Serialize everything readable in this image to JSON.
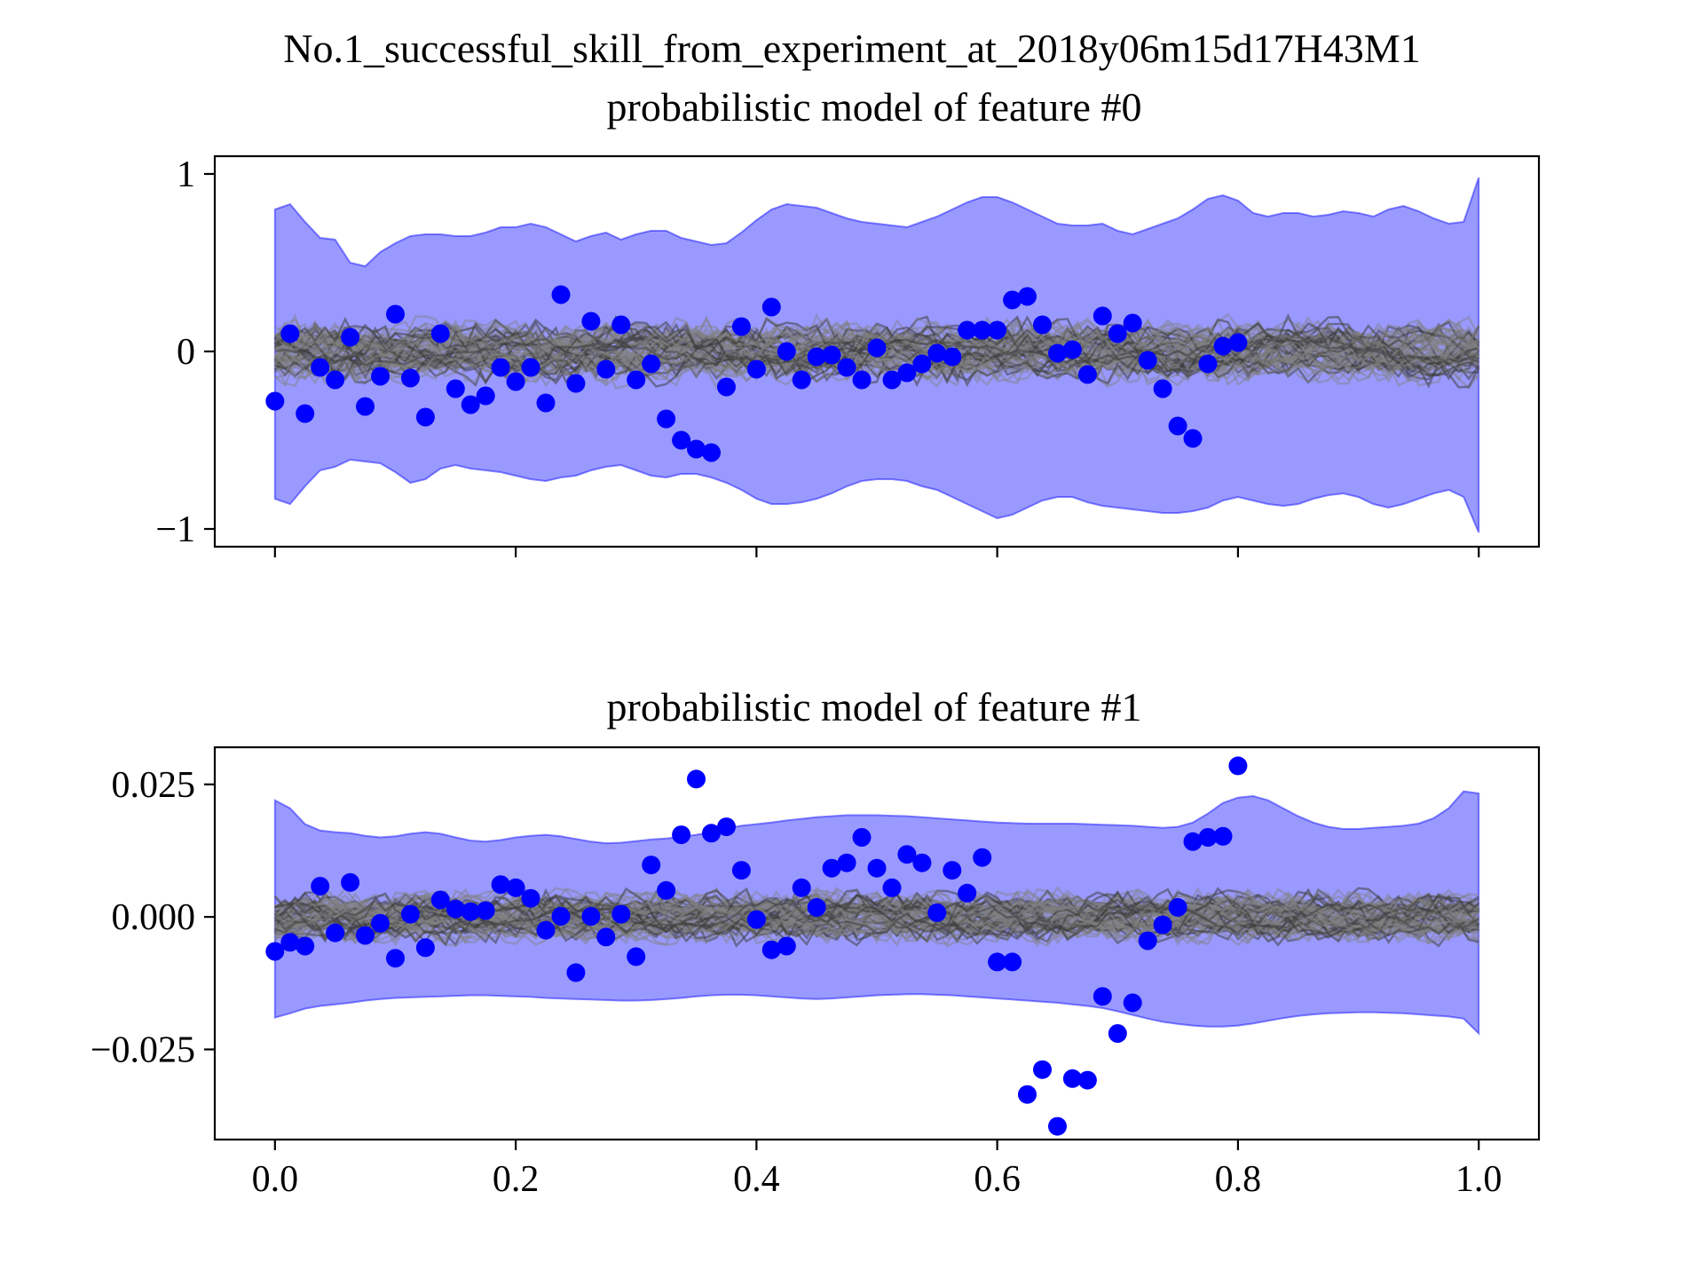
{
  "figure": {
    "suptitle": "No.1_successful_skill_from_experiment_at_2018y06m15d17H43M1"
  },
  "chart_data": [
    {
      "type": "scatter",
      "title": "probabilistic model of feature #0",
      "xlim": [
        -0.05,
        1.05
      ],
      "ylim": [
        -1.1,
        1.1
      ],
      "xticks": [
        0.0,
        0.2,
        0.4,
        0.6,
        0.8,
        1.0
      ],
      "xtick_labels_visible": false,
      "yticks": [
        -1,
        0,
        1
      ],
      "ytick_labels": [
        "−1",
        "0",
        "1"
      ],
      "band_color": "#0000ff",
      "point_color": "#0000ff",
      "trajectory_color": "#808080",
      "band_x": [
        0.0,
        0.0125,
        0.025,
        0.0375,
        0.05,
        0.0625,
        0.075,
        0.0875,
        0.1,
        0.1125,
        0.125,
        0.1375,
        0.15,
        0.1625,
        0.175,
        0.1875,
        0.2,
        0.2125,
        0.225,
        0.2375,
        0.25,
        0.2625,
        0.275,
        0.2875,
        0.3,
        0.3125,
        0.325,
        0.3375,
        0.35,
        0.3625,
        0.375,
        0.3875,
        0.4,
        0.4125,
        0.425,
        0.4375,
        0.45,
        0.4625,
        0.475,
        0.4875,
        0.5,
        0.5125,
        0.525,
        0.5375,
        0.55,
        0.5625,
        0.575,
        0.5875,
        0.6,
        0.6125,
        0.625,
        0.6375,
        0.65,
        0.6625,
        0.675,
        0.6875,
        0.7,
        0.7125,
        0.725,
        0.7375,
        0.75,
        0.7625,
        0.775,
        0.7875,
        0.8,
        0.8125,
        0.825,
        0.8375,
        0.85,
        0.8625,
        0.875,
        0.8875,
        0.9,
        0.9125,
        0.925,
        0.9375,
        0.95,
        0.9625,
        0.975,
        0.9875,
        1.0
      ],
      "band_upper": [
        0.8,
        0.83,
        0.73,
        0.64,
        0.63,
        0.5,
        0.48,
        0.56,
        0.61,
        0.65,
        0.66,
        0.66,
        0.65,
        0.65,
        0.67,
        0.7,
        0.7,
        0.72,
        0.7,
        0.66,
        0.62,
        0.65,
        0.67,
        0.63,
        0.66,
        0.68,
        0.68,
        0.64,
        0.62,
        0.6,
        0.61,
        0.67,
        0.74,
        0.8,
        0.83,
        0.82,
        0.81,
        0.78,
        0.75,
        0.73,
        0.72,
        0.71,
        0.7,
        0.73,
        0.76,
        0.8,
        0.84,
        0.87,
        0.87,
        0.84,
        0.8,
        0.76,
        0.72,
        0.71,
        0.71,
        0.72,
        0.68,
        0.66,
        0.69,
        0.72,
        0.75,
        0.8,
        0.86,
        0.88,
        0.85,
        0.78,
        0.76,
        0.78,
        0.78,
        0.76,
        0.77,
        0.79,
        0.78,
        0.76,
        0.8,
        0.82,
        0.79,
        0.75,
        0.72,
        0.73,
        0.98
      ],
      "band_lower": [
        -0.83,
        -0.86,
        -0.76,
        -0.67,
        -0.65,
        -0.61,
        -0.62,
        -0.63,
        -0.68,
        -0.74,
        -0.72,
        -0.66,
        -0.64,
        -0.66,
        -0.67,
        -0.68,
        -0.7,
        -0.72,
        -0.73,
        -0.71,
        -0.7,
        -0.67,
        -0.65,
        -0.64,
        -0.67,
        -0.7,
        -0.71,
        -0.69,
        -0.69,
        -0.71,
        -0.74,
        -0.78,
        -0.83,
        -0.86,
        -0.86,
        -0.85,
        -0.83,
        -0.8,
        -0.76,
        -0.73,
        -0.72,
        -0.72,
        -0.73,
        -0.76,
        -0.78,
        -0.82,
        -0.86,
        -0.9,
        -0.94,
        -0.92,
        -0.88,
        -0.84,
        -0.82,
        -0.82,
        -0.85,
        -0.87,
        -0.88,
        -0.89,
        -0.9,
        -0.91,
        -0.91,
        -0.9,
        -0.88,
        -0.84,
        -0.82,
        -0.84,
        -0.86,
        -0.87,
        -0.86,
        -0.83,
        -0.81,
        -0.8,
        -0.82,
        -0.86,
        -0.88,
        -0.86,
        -0.83,
        -0.8,
        -0.78,
        -0.82,
        -1.02
      ],
      "trajectory_amplitude": 0.14,
      "points": [
        {
          "x": 0.0,
          "y": -0.28
        },
        {
          "x": 0.0125,
          "y": 0.1
        },
        {
          "x": 0.025,
          "y": -0.35
        },
        {
          "x": 0.0375,
          "y": -0.09
        },
        {
          "x": 0.05,
          "y": -0.16
        },
        {
          "x": 0.0625,
          "y": 0.08
        },
        {
          "x": 0.075,
          "y": -0.31
        },
        {
          "x": 0.0875,
          "y": -0.14
        },
        {
          "x": 0.1,
          "y": 0.21
        },
        {
          "x": 0.1125,
          "y": -0.15
        },
        {
          "x": 0.125,
          "y": -0.37
        },
        {
          "x": 0.1375,
          "y": 0.1
        },
        {
          "x": 0.15,
          "y": -0.21
        },
        {
          "x": 0.1625,
          "y": -0.3
        },
        {
          "x": 0.175,
          "y": -0.25
        },
        {
          "x": 0.1875,
          "y": -0.09
        },
        {
          "x": 0.2,
          "y": -0.17
        },
        {
          "x": 0.2125,
          "y": -0.09
        },
        {
          "x": 0.225,
          "y": -0.29
        },
        {
          "x": 0.2375,
          "y": 0.32
        },
        {
          "x": 0.25,
          "y": -0.18
        },
        {
          "x": 0.2625,
          "y": 0.17
        },
        {
          "x": 0.275,
          "y": -0.1
        },
        {
          "x": 0.2875,
          "y": 0.15
        },
        {
          "x": 0.3,
          "y": -0.16
        },
        {
          "x": 0.3125,
          "y": -0.07
        },
        {
          "x": 0.325,
          "y": -0.38
        },
        {
          "x": 0.3375,
          "y": -0.5
        },
        {
          "x": 0.35,
          "y": -0.55
        },
        {
          "x": 0.3625,
          "y": -0.57
        },
        {
          "x": 0.375,
          "y": -0.2
        },
        {
          "x": 0.3875,
          "y": 0.14
        },
        {
          "x": 0.4,
          "y": -0.1
        },
        {
          "x": 0.4125,
          "y": 0.25
        },
        {
          "x": 0.425,
          "y": 0.0
        },
        {
          "x": 0.4375,
          "y": -0.16
        },
        {
          "x": 0.45,
          "y": -0.03
        },
        {
          "x": 0.4625,
          "y": -0.02
        },
        {
          "x": 0.475,
          "y": -0.09
        },
        {
          "x": 0.4875,
          "y": -0.16
        },
        {
          "x": 0.5,
          "y": 0.02
        },
        {
          "x": 0.5125,
          "y": -0.16
        },
        {
          "x": 0.525,
          "y": -0.12
        },
        {
          "x": 0.5375,
          "y": -0.07
        },
        {
          "x": 0.55,
          "y": -0.01
        },
        {
          "x": 0.5625,
          "y": -0.03
        },
        {
          "x": 0.575,
          "y": 0.12
        },
        {
          "x": 0.5875,
          "y": 0.12
        },
        {
          "x": 0.6,
          "y": 0.12
        },
        {
          "x": 0.6125,
          "y": 0.29
        },
        {
          "x": 0.625,
          "y": 0.31
        },
        {
          "x": 0.6375,
          "y": 0.15
        },
        {
          "x": 0.65,
          "y": -0.01
        },
        {
          "x": 0.6625,
          "y": 0.01
        },
        {
          "x": 0.675,
          "y": -0.13
        },
        {
          "x": 0.6875,
          "y": 0.2
        },
        {
          "x": 0.7,
          "y": 0.1
        },
        {
          "x": 0.7125,
          "y": 0.16
        },
        {
          "x": 0.725,
          "y": -0.05
        },
        {
          "x": 0.7375,
          "y": -0.21
        },
        {
          "x": 0.75,
          "y": -0.42
        },
        {
          "x": 0.7625,
          "y": -0.49
        },
        {
          "x": 0.775,
          "y": -0.07
        },
        {
          "x": 0.7875,
          "y": 0.03
        },
        {
          "x": 0.8,
          "y": 0.05
        }
      ]
    },
    {
      "type": "scatter",
      "title": "probabilistic model of feature #1",
      "xlim": [
        -0.05,
        1.05
      ],
      "ylim": [
        -0.042,
        0.032
      ],
      "xticks": [
        0.0,
        0.2,
        0.4,
        0.6,
        0.8,
        1.0
      ],
      "xtick_labels": [
        "0.0",
        "0.2",
        "0.4",
        "0.6",
        "0.8",
        "1.0"
      ],
      "xtick_labels_visible": true,
      "yticks": [
        -0.025,
        0.0,
        0.025
      ],
      "ytick_labels": [
        "−0.025",
        "0.000",
        "0.025"
      ],
      "band_color": "#0000ff",
      "point_color": "#0000ff",
      "trajectory_color": "#808080",
      "band_x": [
        0.0,
        0.0125,
        0.025,
        0.0375,
        0.05,
        0.0625,
        0.075,
        0.0875,
        0.1,
        0.1125,
        0.125,
        0.1375,
        0.15,
        0.1625,
        0.175,
        0.1875,
        0.2,
        0.2125,
        0.225,
        0.2375,
        0.25,
        0.2625,
        0.275,
        0.2875,
        0.3,
        0.3125,
        0.325,
        0.3375,
        0.35,
        0.3625,
        0.375,
        0.3875,
        0.4,
        0.4125,
        0.425,
        0.4375,
        0.45,
        0.4625,
        0.475,
        0.4875,
        0.5,
        0.5125,
        0.525,
        0.5375,
        0.55,
        0.5625,
        0.575,
        0.5875,
        0.6,
        0.6125,
        0.625,
        0.6375,
        0.65,
        0.6625,
        0.675,
        0.6875,
        0.7,
        0.7125,
        0.725,
        0.7375,
        0.75,
        0.7625,
        0.775,
        0.7875,
        0.8,
        0.8125,
        0.825,
        0.8375,
        0.85,
        0.8625,
        0.875,
        0.8875,
        0.9,
        0.9125,
        0.925,
        0.9375,
        0.95,
        0.9625,
        0.975,
        0.9875,
        1.0
      ],
      "band_upper": [
        0.022,
        0.0205,
        0.0175,
        0.0163,
        0.016,
        0.0158,
        0.0153,
        0.015,
        0.0152,
        0.0157,
        0.016,
        0.0157,
        0.015,
        0.0144,
        0.0142,
        0.0145,
        0.015,
        0.0153,
        0.0155,
        0.0152,
        0.0147,
        0.0142,
        0.0139,
        0.014,
        0.0143,
        0.0146,
        0.0148,
        0.0151,
        0.0155,
        0.016,
        0.0167,
        0.0172,
        0.0175,
        0.0178,
        0.0182,
        0.0185,
        0.0188,
        0.019,
        0.0192,
        0.0192,
        0.0192,
        0.0191,
        0.019,
        0.0188,
        0.0186,
        0.0184,
        0.0182,
        0.018,
        0.0178,
        0.0177,
        0.0176,
        0.0176,
        0.0176,
        0.0176,
        0.0175,
        0.0174,
        0.0173,
        0.0172,
        0.017,
        0.0168,
        0.017,
        0.0178,
        0.0195,
        0.0215,
        0.0225,
        0.0228,
        0.022,
        0.0205,
        0.019,
        0.0178,
        0.017,
        0.0166,
        0.0166,
        0.0168,
        0.017,
        0.0172,
        0.0176,
        0.0186,
        0.0205,
        0.0237,
        0.0233
      ],
      "band_lower": [
        -0.019,
        -0.0182,
        -0.0173,
        -0.0168,
        -0.0165,
        -0.0162,
        -0.0158,
        -0.0155,
        -0.0153,
        -0.0152,
        -0.0151,
        -0.015,
        -0.0149,
        -0.0148,
        -0.0148,
        -0.0149,
        -0.015,
        -0.0151,
        -0.0153,
        -0.0154,
        -0.0155,
        -0.0156,
        -0.0157,
        -0.0158,
        -0.0158,
        -0.0157,
        -0.0155,
        -0.0153,
        -0.015,
        -0.0148,
        -0.0147,
        -0.0147,
        -0.0148,
        -0.015,
        -0.0152,
        -0.0154,
        -0.0155,
        -0.0154,
        -0.0152,
        -0.015,
        -0.0148,
        -0.0147,
        -0.0146,
        -0.0146,
        -0.0147,
        -0.0148,
        -0.015,
        -0.0152,
        -0.0154,
        -0.0156,
        -0.0158,
        -0.016,
        -0.0162,
        -0.0165,
        -0.0168,
        -0.0172,
        -0.0178,
        -0.0185,
        -0.0192,
        -0.0198,
        -0.0202,
        -0.0205,
        -0.0207,
        -0.0207,
        -0.0205,
        -0.0201,
        -0.0196,
        -0.0191,
        -0.0187,
        -0.0184,
        -0.0182,
        -0.0181,
        -0.018,
        -0.018,
        -0.0181,
        -0.0182,
        -0.0184,
        -0.0186,
        -0.0188,
        -0.0192,
        -0.022
      ],
      "trajectory_amplitude": 0.0038,
      "points": [
        {
          "x": 0.0,
          "y": -0.0065
        },
        {
          "x": 0.0125,
          "y": -0.0048
        },
        {
          "x": 0.025,
          "y": -0.0055
        },
        {
          "x": 0.0375,
          "y": 0.0058
        },
        {
          "x": 0.05,
          "y": -0.003
        },
        {
          "x": 0.0625,
          "y": 0.0065
        },
        {
          "x": 0.075,
          "y": -0.0035
        },
        {
          "x": 0.0875,
          "y": -0.0012
        },
        {
          "x": 0.1,
          "y": -0.0078
        },
        {
          "x": 0.1125,
          "y": 0.0005
        },
        {
          "x": 0.125,
          "y": -0.0058
        },
        {
          "x": 0.1375,
          "y": 0.0032
        },
        {
          "x": 0.15,
          "y": 0.0015
        },
        {
          "x": 0.1625,
          "y": 0.001
        },
        {
          "x": 0.175,
          "y": 0.0012
        },
        {
          "x": 0.1875,
          "y": 0.0061
        },
        {
          "x": 0.2,
          "y": 0.0055
        },
        {
          "x": 0.2125,
          "y": 0.0035
        },
        {
          "x": 0.225,
          "y": -0.0025
        },
        {
          "x": 0.2375,
          "y": 0.0001
        },
        {
          "x": 0.25,
          "y": -0.0105
        },
        {
          "x": 0.2625,
          "y": 0.0001
        },
        {
          "x": 0.275,
          "y": -0.0038
        },
        {
          "x": 0.2875,
          "y": 0.0005
        },
        {
          "x": 0.3,
          "y": -0.0075
        },
        {
          "x": 0.3125,
          "y": 0.0098
        },
        {
          "x": 0.325,
          "y": 0.005
        },
        {
          "x": 0.3375,
          "y": 0.0155
        },
        {
          "x": 0.35,
          "y": 0.026
        },
        {
          "x": 0.3625,
          "y": 0.0158
        },
        {
          "x": 0.375,
          "y": 0.017
        },
        {
          "x": 0.3875,
          "y": 0.0088
        },
        {
          "x": 0.4,
          "y": -0.0005
        },
        {
          "x": 0.4125,
          "y": -0.0062
        },
        {
          "x": 0.425,
          "y": -0.0055
        },
        {
          "x": 0.4375,
          "y": 0.0055
        },
        {
          "x": 0.45,
          "y": 0.0018
        },
        {
          "x": 0.4625,
          "y": 0.0092
        },
        {
          "x": 0.475,
          "y": 0.0102
        },
        {
          "x": 0.4875,
          "y": 0.015
        },
        {
          "x": 0.5,
          "y": 0.0092
        },
        {
          "x": 0.5125,
          "y": 0.0055
        },
        {
          "x": 0.525,
          "y": 0.0118
        },
        {
          "x": 0.5375,
          "y": 0.0102
        },
        {
          "x": 0.55,
          "y": 0.0008
        },
        {
          "x": 0.5625,
          "y": 0.0088
        },
        {
          "x": 0.575,
          "y": 0.0045
        },
        {
          "x": 0.5875,
          "y": 0.0112
        },
        {
          "x": 0.6,
          "y": -0.0085
        },
        {
          "x": 0.6125,
          "y": -0.0085
        },
        {
          "x": 0.625,
          "y": -0.0335
        },
        {
          "x": 0.6375,
          "y": -0.0288
        },
        {
          "x": 0.65,
          "y": -0.0395
        },
        {
          "x": 0.6625,
          "y": -0.0305
        },
        {
          "x": 0.675,
          "y": -0.0308
        },
        {
          "x": 0.6875,
          "y": -0.015
        },
        {
          "x": 0.7,
          "y": -0.022
        },
        {
          "x": 0.7125,
          "y": -0.0162
        },
        {
          "x": 0.725,
          "y": -0.0045
        },
        {
          "x": 0.7375,
          "y": -0.0015
        },
        {
          "x": 0.75,
          "y": 0.0018
        },
        {
          "x": 0.7625,
          "y": 0.0142
        },
        {
          "x": 0.775,
          "y": 0.015
        },
        {
          "x": 0.7875,
          "y": 0.0152
        },
        {
          "x": 0.8,
          "y": 0.0285
        }
      ]
    }
  ]
}
